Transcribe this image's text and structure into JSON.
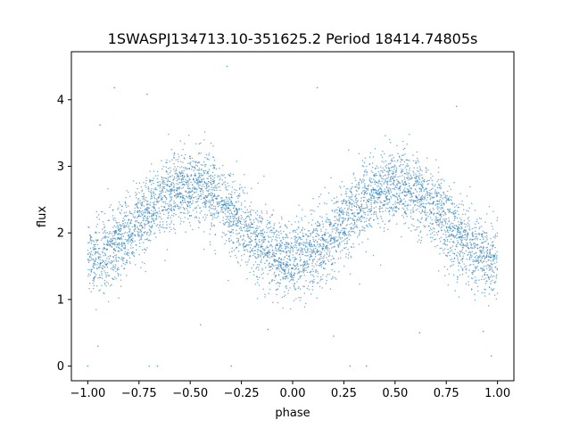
{
  "chart_data": {
    "type": "scatter",
    "title": "1SWASPJ134713.10-351625.2 Period 18414.74805s",
    "xlabel": "phase",
    "ylabel": "flux",
    "xlim": [
      -1.08,
      1.08
    ],
    "ylim": [
      -0.22,
      4.72
    ],
    "xticks": [
      -1.0,
      -0.75,
      -0.5,
      -0.25,
      0.0,
      0.25,
      0.5,
      0.75,
      1.0
    ],
    "xtick_labels": [
      "−1.00",
      "−0.75",
      "−0.50",
      "−0.25",
      "0.00",
      "0.25",
      "0.50",
      "0.75",
      "1.00"
    ],
    "yticks": [
      0,
      1,
      2,
      3,
      4
    ],
    "ytick_labels": [
      "0",
      "1",
      "2",
      "3",
      "4"
    ],
    "grid": false,
    "legend": "none",
    "marker_color": "#1f77b4",
    "model": {
      "description_of_trend": "sinusoid in phase with two minima and two maxima per [-1,1]",
      "mean_flux": 2.15,
      "amplitude": 0.55,
      "maxima_phase": [
        -0.5,
        0.5
      ],
      "minima_phase": [
        -1.0,
        0.0,
        1.0
      ],
      "scatter_sigma": 0.28
    },
    "outliers": [
      {
        "x": -0.87,
        "y": 4.18
      },
      {
        "x": -0.71,
        "y": 4.08
      },
      {
        "x": -0.32,
        "y": 4.5
      },
      {
        "x": 0.12,
        "y": 4.18
      },
      {
        "x": 0.8,
        "y": 3.9
      },
      {
        "x": -0.94,
        "y": 3.62
      },
      {
        "x": -0.95,
        "y": 0.3
      },
      {
        "x": -0.7,
        "y": 0.0
      },
      {
        "x": -0.66,
        "y": 0.0
      },
      {
        "x": -0.3,
        "y": 0.0
      },
      {
        "x": 0.28,
        "y": 0.0
      },
      {
        "x": 0.36,
        "y": 0.0
      },
      {
        "x": -1.0,
        "y": 0.0
      },
      {
        "x": 0.97,
        "y": 0.15
      },
      {
        "x": -0.12,
        "y": 0.55
      },
      {
        "x": 0.2,
        "y": 0.45
      },
      {
        "x": 0.62,
        "y": 0.5
      },
      {
        "x": -0.45,
        "y": 0.62
      },
      {
        "x": 0.93,
        "y": 0.52
      }
    ]
  }
}
